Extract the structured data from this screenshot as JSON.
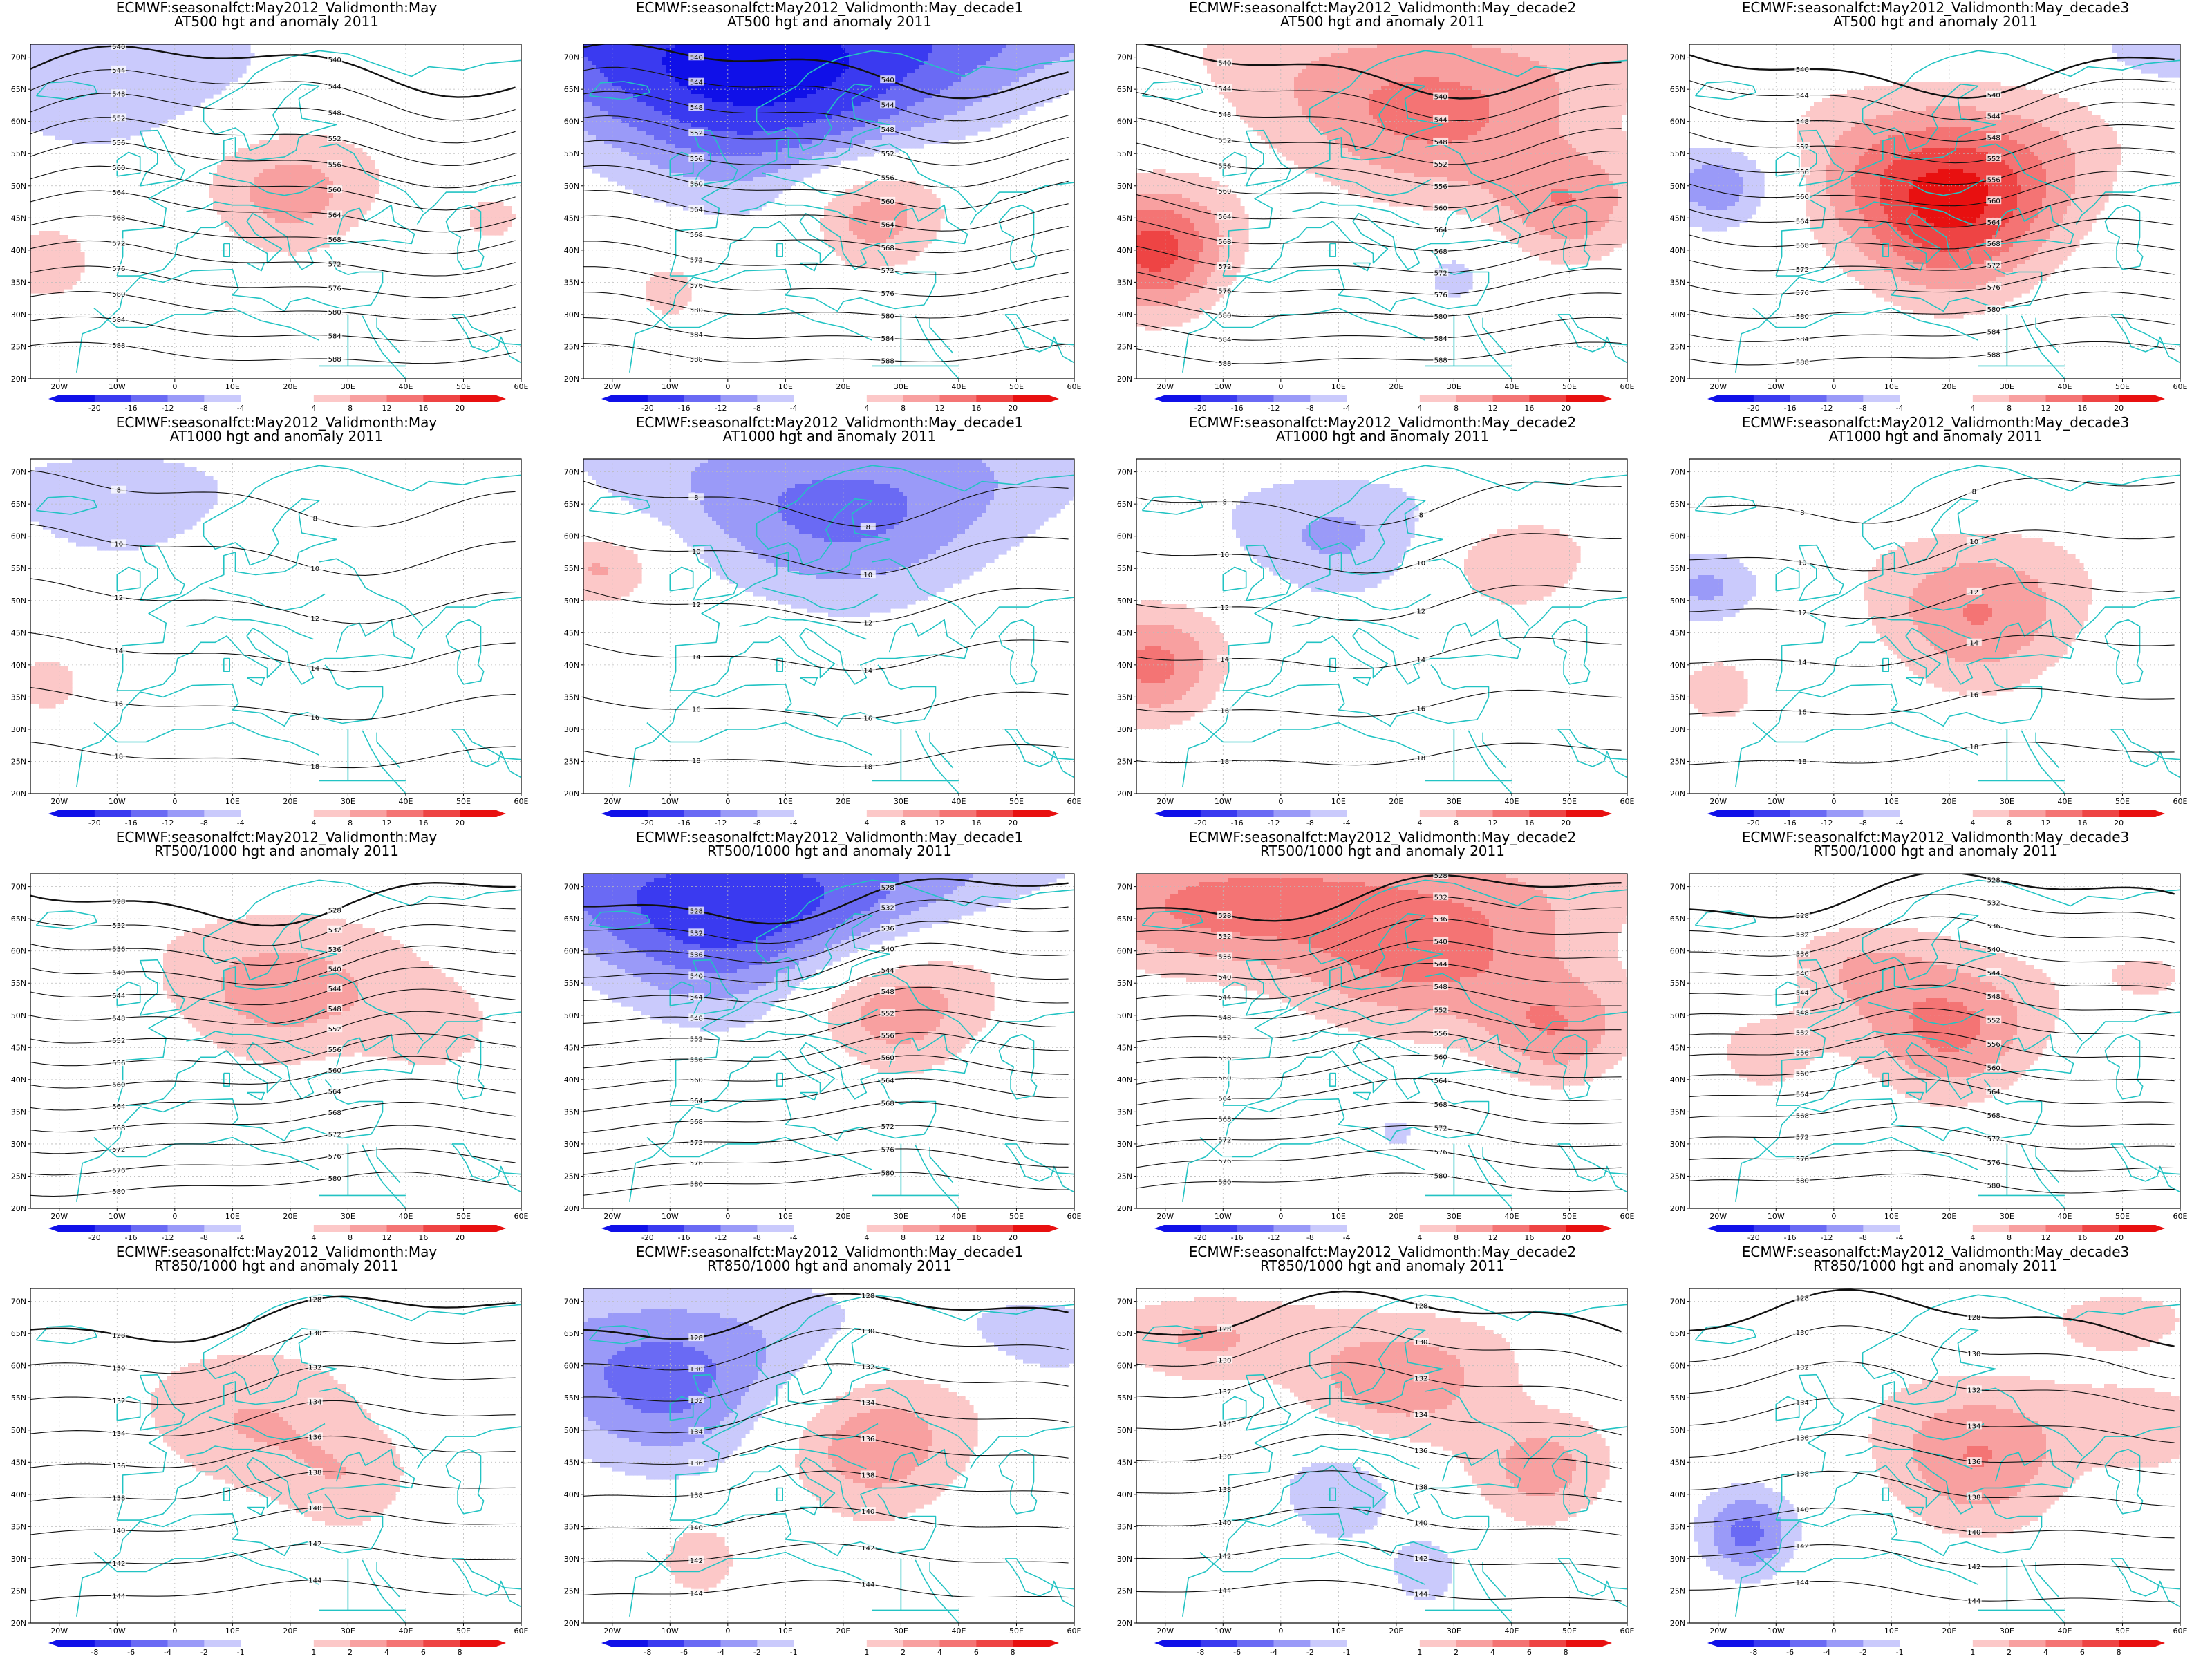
{
  "grid": {
    "rows": 4,
    "cols": 4
  },
  "columns": [
    {
      "title_line1": "ECMWF:seasonalfct:May2012_Validmonth:May",
      "anom_sign": 1,
      "key": "may"
    },
    {
      "title_line1": "ECMWF:seasonalfct:May2012_Validmonth:May_decade1",
      "anom_sign": -1,
      "key": "d1"
    },
    {
      "title_line1": "ECMWF:seasonalfct:May2012_Validmonth:May_decade2",
      "anom_sign": 1,
      "key": "d2"
    },
    {
      "title_line1": "ECMWF:seasonalfct:May2012_Validmonth:May_decade3",
      "anom_sign": 1,
      "key": "d3"
    }
  ],
  "rows": [
    {
      "title_line2": "AT500 hgt and anomaly 2011",
      "colorbar": [
        "-20",
        "-16",
        "-12",
        "-8",
        "-4",
        "4",
        "8",
        "12",
        "16",
        "20"
      ],
      "contour_labels": [
        "540",
        "544",
        "548",
        "552",
        "556",
        "560",
        "564",
        "568",
        "572",
        "576",
        "580",
        "584",
        "588"
      ]
    },
    {
      "title_line2": "AT1000 hgt and anomaly 2011",
      "colorbar": [
        "-20",
        "-16",
        "-12",
        "-8",
        "-4",
        "4",
        "8",
        "12",
        "16",
        "20"
      ],
      "contour_labels": [
        "8",
        "10",
        "12",
        "14",
        "16",
        "18"
      ]
    },
    {
      "title_line2": "RT500/1000 hgt and anomaly 2011",
      "colorbar": [
        "-20",
        "-16",
        "-12",
        "-8",
        "-4",
        "4",
        "8",
        "12",
        "16",
        "20"
      ],
      "contour_labels": [
        "528",
        "532",
        "536",
        "540",
        "544",
        "548",
        "552",
        "556",
        "560",
        "564",
        "568",
        "572",
        "576",
        "580"
      ]
    },
    {
      "title_line2": "RT850/1000 hgt and anomaly 2011",
      "colorbar": [
        "-8",
        "-6",
        "-4",
        "-2",
        "-1",
        "1",
        "2",
        "4",
        "6",
        "8"
      ],
      "contour_labels": [
        "128",
        "130",
        "132",
        "134",
        "136",
        "138",
        "140",
        "142",
        "144"
      ]
    }
  ],
  "axes": {
    "x_ticks": [
      "20W",
      "10W",
      "0",
      "10E",
      "20E",
      "30E",
      "40E",
      "50E",
      "60E"
    ],
    "y_ticks": [
      "70N",
      "65N",
      "60N",
      "55N",
      "50N",
      "45N",
      "40N",
      "35N",
      "30N",
      "25N",
      "20N"
    ],
    "lon_range": [
      -25,
      60
    ],
    "lat_range": [
      20,
      72
    ]
  },
  "colors": {
    "coast": "#22c3c3",
    "contour": "#111111",
    "neg_scale": [
      "#1010e8",
      "#3a3af0",
      "#6a6af4",
      "#9a9af8",
      "#cacafc"
    ],
    "pos_scale": [
      "#fcc8c8",
      "#f8a0a0",
      "#f47474",
      "#ee4444",
      "#e81010"
    ]
  },
  "anomaly_blobs": [
    [
      [
        {
          "lon": 20,
          "lat": 49,
          "amp": 0.45,
          "r": 10
        },
        {
          "lon": -12,
          "lat": 66,
          "amp": -0.35,
          "r": 12
        },
        {
          "lon": -22,
          "lat": 38,
          "amp": 0.3,
          "r": 7
        },
        {
          "lon": 55,
          "lat": 45,
          "amp": 0.2,
          "r": 8
        }
      ],
      [
        {
          "lon": 5,
          "lat": 68,
          "amp": -1.0,
          "r": 18
        },
        {
          "lon": 25,
          "lat": 46,
          "amp": 0.55,
          "r": 9
        },
        {
          "lon": -10,
          "lat": 34,
          "amp": 0.25,
          "r": 7
        }
      ],
      [
        {
          "lon": -22,
          "lat": 40,
          "amp": 0.8,
          "r": 10
        },
        {
          "lon": 25,
          "lat": 62,
          "amp": 0.6,
          "r": 14
        },
        {
          "lon": 50,
          "lat": 47,
          "amp": 0.5,
          "r": 9
        },
        {
          "lon": 30,
          "lat": 36,
          "amp": -0.25,
          "r": 6
        }
      ],
      [
        {
          "lon": 20,
          "lat": 48,
          "amp": 1.0,
          "r": 14
        },
        {
          "lon": -20,
          "lat": 50,
          "amp": -0.5,
          "r": 7
        },
        {
          "lon": 58,
          "lat": 70,
          "amp": -0.3,
          "r": 6
        }
      ]
    ],
    [
      [
        {
          "lon": -10,
          "lat": 65,
          "amp": -0.3,
          "r": 10
        },
        {
          "lon": -22,
          "lat": 37,
          "amp": 0.3,
          "r": 5
        }
      ],
      [
        {
          "lon": 20,
          "lat": 64,
          "amp": -0.6,
          "r": 15
        },
        {
          "lon": -22,
          "lat": 55,
          "amp": 0.4,
          "r": 6
        },
        {
          "lon": 5,
          "lat": 40,
          "amp": 0.2,
          "r": 6
        }
      ],
      [
        {
          "lon": -22,
          "lat": 40,
          "amp": 0.6,
          "r": 9
        },
        {
          "lon": 10,
          "lat": 60,
          "amp": -0.4,
          "r": 10
        },
        {
          "lon": 40,
          "lat": 56,
          "amp": 0.35,
          "r": 8
        }
      ],
      [
        {
          "lon": 25,
          "lat": 48,
          "amp": 0.55,
          "r": 12
        },
        {
          "lon": -22,
          "lat": 52,
          "amp": -0.4,
          "r": 6
        },
        {
          "lon": -20,
          "lat": 36,
          "amp": 0.3,
          "r": 6
        }
      ]
    ],
    [
      [
        {
          "lon": 18,
          "lat": 54,
          "amp": 0.45,
          "r": 12
        },
        {
          "lon": 45,
          "lat": 48,
          "amp": 0.25,
          "r": 9
        }
      ],
      [
        {
          "lon": 2,
          "lat": 66,
          "amp": -0.9,
          "r": 15
        },
        {
          "lon": 28,
          "lat": 52,
          "amp": 0.55,
          "r": 11
        },
        {
          "lon": 15,
          "lat": 38,
          "amp": -0.2,
          "r": 6
        }
      ],
      [
        {
          "lon": 22,
          "lat": 62,
          "amp": 0.65,
          "r": 14
        },
        {
          "lon": 48,
          "lat": 48,
          "amp": 0.5,
          "r": 9
        },
        {
          "lon": -18,
          "lat": 66,
          "amp": 0.4,
          "r": 10
        },
        {
          "lon": 20,
          "lat": 32,
          "amp": -0.2,
          "r": 7
        }
      ],
      [
        {
          "lon": 20,
          "lat": 48,
          "amp": 0.6,
          "r": 11
        },
        {
          "lon": 5,
          "lat": 58,
          "amp": 0.25,
          "r": 7
        },
        {
          "lon": 55,
          "lat": 56,
          "amp": 0.2,
          "r": 6
        },
        {
          "lon": -12,
          "lat": 44,
          "amp": 0.25,
          "r": 8
        }
      ]
    ],
    [
      [
        {
          "lon": 12,
          "lat": 52,
          "amp": 0.35,
          "r": 12
        },
        {
          "lon": 30,
          "lat": 42,
          "amp": 0.3,
          "r": 9
        },
        {
          "lon": -15,
          "lat": 66,
          "amp": -0.2,
          "r": 6
        }
      ],
      [
        {
          "lon": -10,
          "lat": 58,
          "amp": -0.65,
          "r": 14
        },
        {
          "lon": 25,
          "lat": 48,
          "amp": 0.5,
          "r": 12
        },
        {
          "lon": 55,
          "lat": 64,
          "amp": -0.3,
          "r": 7
        },
        {
          "lon": -5,
          "lat": 30,
          "amp": 0.3,
          "r": 7
        }
      ],
      [
        {
          "lon": 20,
          "lat": 58,
          "amp": 0.5,
          "r": 10
        },
        {
          "lon": 45,
          "lat": 44,
          "amp": 0.45,
          "r": 9
        },
        {
          "lon": -15,
          "lat": 64,
          "amp": 0.35,
          "r": 7
        },
        {
          "lon": 10,
          "lat": 40,
          "amp": -0.35,
          "r": 8
        },
        {
          "lon": 25,
          "lat": 28,
          "amp": -0.3,
          "r": 6
        }
      ],
      [
        {
          "lon": 25,
          "lat": 46,
          "amp": 0.55,
          "r": 12
        },
        {
          "lon": -15,
          "lat": 34,
          "amp": -0.6,
          "r": 7
        },
        {
          "lon": 55,
          "lat": 50,
          "amp": 0.3,
          "r": 7
        },
        {
          "lon": 50,
          "lat": 67,
          "amp": 0.25,
          "r": 6
        }
      ]
    ]
  ]
}
